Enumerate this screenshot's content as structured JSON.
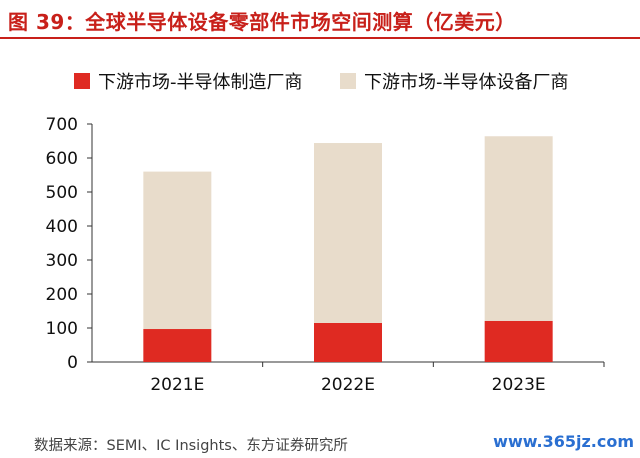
{
  "figure": {
    "title": "图 39：全球半导体设备零部件市场空间测算（亿美元）",
    "source": "数据来源：SEMI、IC Insights、东方证券研究所",
    "watermark": "www.365jz.com"
  },
  "colors": {
    "title": "#c8201a",
    "series_manufacturers": "#df2a22",
    "series_equipment": "#e8dccb",
    "axis": "#333333",
    "watermark": "#2a6fd1"
  },
  "chart_data": {
    "type": "bar",
    "stacked": true,
    "categories": [
      "2021E",
      "2022E",
      "2023E"
    ],
    "series": [
      {
        "name": "下游市场-半导体制造厂商",
        "values": [
          97,
          115,
          121
        ]
      },
      {
        "name": "下游市场-半导体设备厂商",
        "values": [
          463,
          529,
          543
        ]
      }
    ],
    "yticks": [
      0,
      100,
      200,
      300,
      400,
      500,
      600,
      700
    ],
    "ylim": [
      0,
      700
    ],
    "xlabel": "",
    "ylabel": "",
    "grid": false,
    "legend_position": "top"
  }
}
